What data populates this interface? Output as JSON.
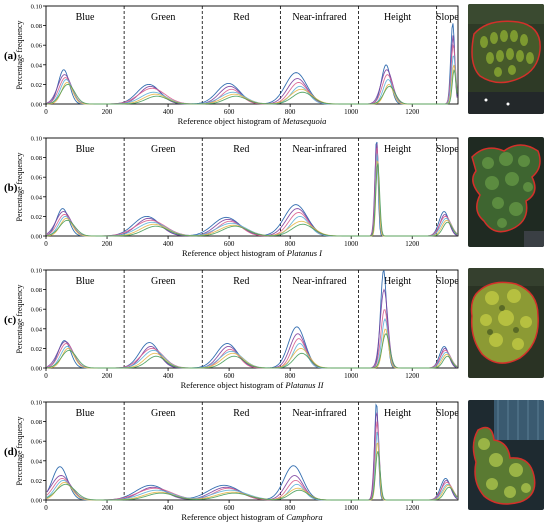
{
  "chart_data": [
    {
      "panel": "(a)",
      "type": "line",
      "xlabel_prefix": "Reference object histogram of ",
      "xlabel_species": "Metasequoia",
      "ylabel": "Percentage frequency",
      "xlim": [
        0,
        1350
      ],
      "ylim": [
        0,
        0.1
      ],
      "xticks": [
        0,
        200,
        400,
        600,
        800,
        1000,
        1200
      ],
      "yticks": [
        "0.00",
        "0.02",
        "0.04",
        "0.06",
        "0.08",
        "0.10"
      ],
      "sections": [
        "Blue",
        "Green",
        "Red",
        "Near-infrared",
        "Height",
        "Slope"
      ],
      "section_dividers": [
        256,
        512,
        768,
        1024,
        1280
      ],
      "peaks": [
        {
          "center": 65,
          "heights": [
            0.035,
            0.03,
            0.027,
            0.025,
            0.022,
            0.02
          ],
          "width": 18
        },
        {
          "center": 350,
          "heights": [
            0.02,
            0.018,
            0.016,
            0.012,
            0.01,
            0.008
          ],
          "width": 35
        },
        {
          "center": 610,
          "heights": [
            0.021,
            0.018,
            0.015,
            0.012,
            0.01,
            0.008
          ],
          "width": 32
        },
        {
          "center": 830,
          "heights": [
            0.032,
            0.026,
            0.022,
            0.018,
            0.015,
            0.012
          ],
          "width": 28
        },
        {
          "center": 1120,
          "heights": [
            0.04,
            0.035,
            0.03,
            0.025,
            0.02,
            0.018
          ],
          "width": 15
        },
        {
          "center": 1335,
          "heights": [
            0.083,
            0.07,
            0.06,
            0.05,
            0.04,
            0.035
          ],
          "width": 6
        }
      ]
    },
    {
      "panel": "(b)",
      "type": "line",
      "xlabel_prefix": "Reference object histogram of ",
      "xlabel_species": "Platanus I",
      "ylabel": "Percentage frequency",
      "xlim": [
        0,
        1350
      ],
      "ylim": [
        0,
        0.1
      ],
      "xticks": [
        0,
        200,
        400,
        600,
        800,
        1000,
        1200
      ],
      "yticks": [
        "0.00",
        "0.02",
        "0.04",
        "0.06",
        "0.08",
        "0.10"
      ],
      "sections": [
        "Blue",
        "Green",
        "Red",
        "Near-infrared",
        "Height",
        "Slope"
      ],
      "section_dividers": [
        256,
        512,
        768,
        1024,
        1280
      ],
      "peaks": [
        {
          "center": 62,
          "heights": [
            0.028,
            0.025,
            0.022,
            0.02,
            0.018,
            0.016
          ],
          "width": 20
        },
        {
          "center": 345,
          "heights": [
            0.02,
            0.018,
            0.016,
            0.014,
            0.012,
            0.01
          ],
          "width": 40
        },
        {
          "center": 605,
          "heights": [
            0.019,
            0.017,
            0.015,
            0.013,
            0.011,
            0.01
          ],
          "width": 38
        },
        {
          "center": 830,
          "heights": [
            0.032,
            0.028,
            0.024,
            0.02,
            0.015,
            0.012
          ],
          "width": 30
        },
        {
          "center": 1085,
          "heights": [
            0.1,
            0.095,
            0.09,
            0.085,
            0.08,
            0.075
          ],
          "width": 5
        },
        {
          "center": 1310,
          "heights": [
            0.025,
            0.022,
            0.02,
            0.018,
            0.016,
            0.014
          ],
          "width": 15
        }
      ]
    },
    {
      "panel": "(c)",
      "type": "line",
      "xlabel_prefix": "Reference object histogram of ",
      "xlabel_species": "Platanus II",
      "ylabel": "Percentage frequency",
      "xlim": [
        0,
        1350
      ],
      "ylim": [
        0,
        0.1
      ],
      "xticks": [
        0,
        200,
        400,
        600,
        800,
        1000,
        1200
      ],
      "yticks": [
        "0.00",
        "0.02",
        "0.04",
        "0.06",
        "0.08",
        "0.10"
      ],
      "sections": [
        "Blue",
        "Green",
        "Red",
        "Near-infrared",
        "Height",
        "Slope"
      ],
      "section_dividers": [
        256,
        512,
        768,
        1024,
        1280
      ],
      "peaks": [
        {
          "center": 68,
          "heights": [
            0.028,
            0.027,
            0.025,
            0.022,
            0.02,
            0.018
          ],
          "width": 20
        },
        {
          "center": 350,
          "heights": [
            0.026,
            0.022,
            0.02,
            0.018,
            0.015,
            0.012
          ],
          "width": 30
        },
        {
          "center": 605,
          "heights": [
            0.025,
            0.022,
            0.019,
            0.017,
            0.015,
            0.012
          ],
          "width": 30
        },
        {
          "center": 830,
          "heights": [
            0.042,
            0.035,
            0.03,
            0.025,
            0.02,
            0.015
          ],
          "width": 22
        },
        {
          "center": 1110,
          "heights": [
            0.1,
            0.08,
            0.06,
            0.05,
            0.04,
            0.035
          ],
          "width": 10
        },
        {
          "center": 1310,
          "heights": [
            0.022,
            0.02,
            0.018,
            0.016,
            0.014,
            0.012
          ],
          "width": 14
        }
      ]
    },
    {
      "panel": "(d)",
      "type": "line",
      "xlabel_prefix": "Reference object histogram of ",
      "xlabel_species": "Camphora",
      "ylabel": "Percentage frequency",
      "xlim": [
        0,
        1350
      ],
      "ylim": [
        0,
        0.1
      ],
      "xticks": [
        0,
        200,
        400,
        600,
        800,
        1000,
        1200
      ],
      "yticks": [
        "0.00",
        "0.02",
        "0.04",
        "0.06",
        "0.08",
        "0.10"
      ],
      "sections": [
        "Blue",
        "Green",
        "Red",
        "Near-infrared",
        "Height",
        "Slope"
      ],
      "section_dividers": [
        256,
        512,
        768,
        1024,
        1280
      ],
      "peaks": [
        {
          "center": 55,
          "heights": [
            0.034,
            0.025,
            0.022,
            0.02,
            0.018,
            0.016
          ],
          "width": 25
        },
        {
          "center": 360,
          "heights": [
            0.015,
            0.013,
            0.012,
            0.01,
            0.008,
            0.007
          ],
          "width": 45
        },
        {
          "center": 600,
          "heights": [
            0.015,
            0.013,
            0.012,
            0.01,
            0.008,
            0.007
          ],
          "width": 45
        },
        {
          "center": 820,
          "heights": [
            0.035,
            0.025,
            0.02,
            0.016,
            0.012,
            0.01
          ],
          "width": 25
        },
        {
          "center": 1085,
          "heights": [
            0.1,
            0.09,
            0.08,
            0.07,
            0.06,
            0.05
          ],
          "width": 6
        },
        {
          "center": 1315,
          "heights": [
            0.022,
            0.02,
            0.018,
            0.016,
            0.015,
            0.013
          ],
          "width": 15
        }
      ]
    }
  ],
  "series_colors": [
    "#1f5fa8",
    "#7b3f9e",
    "#d95f8f",
    "#5fb0d8",
    "#e8b84a",
    "#4a9e5c"
  ],
  "thumbnails": [
    {
      "panel": "(a)",
      "scene": "row-of-conifers",
      "base": "#2e3a26",
      "canopy": "#6b8a2c",
      "outline": "#d3302a"
    },
    {
      "panel": "(b)",
      "scene": "broadleaf-crown",
      "base": "#1f2a22",
      "canopy": "#4f7a3a",
      "outline": "#d3302a"
    },
    {
      "panel": "(c)",
      "scene": "broadleaf-crown-yellow",
      "base": "#2a3324",
      "canopy": "#a8b23c",
      "outline": "#d3302a"
    },
    {
      "panel": "(d)",
      "scene": "camphora-crowns",
      "base": "#1e2a30",
      "canopy": "#7e9a3c",
      "outline": "#d3302a"
    }
  ]
}
